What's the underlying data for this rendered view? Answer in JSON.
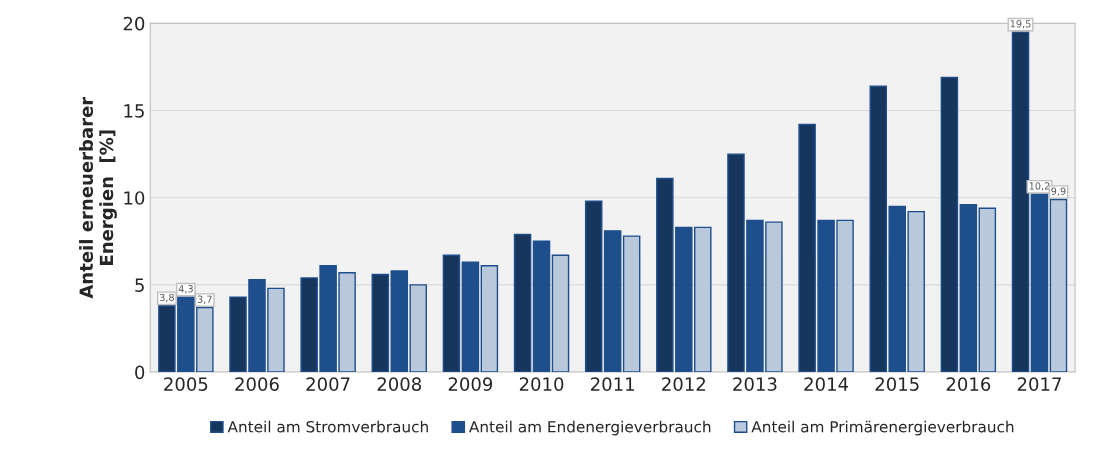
{
  "chart_data": {
    "type": "bar",
    "ylabel": "Anteil erneuerbarer\nEnergien  [%]",
    "categories": [
      "2005",
      "2006",
      "2007",
      "2008",
      "2009",
      "2010",
      "2011",
      "2012",
      "2013",
      "2014",
      "2015",
      "2016",
      "2017"
    ],
    "series": [
      {
        "name": "Anteil am Stromverbrauch",
        "color": "#17365d",
        "values": [
          3.8,
          4.3,
          5.4,
          5.6,
          6.7,
          7.9,
          9.8,
          11.1,
          12.5,
          14.2,
          16.4,
          16.9,
          19.5
        ],
        "value_labels": [
          "3,8",
          null,
          null,
          null,
          null,
          null,
          null,
          null,
          null,
          null,
          null,
          null,
          "19,5"
        ]
      },
      {
        "name": "Anteil am Endenergieverbrauch",
        "color": "#1f4e8c",
        "values": [
          4.3,
          5.3,
          6.1,
          5.8,
          6.3,
          7.5,
          8.1,
          8.3,
          8.7,
          8.7,
          9.5,
          9.6,
          10.2
        ],
        "value_labels": [
          "4,3",
          null,
          null,
          null,
          null,
          null,
          null,
          null,
          null,
          null,
          null,
          null,
          "10,2"
        ]
      },
      {
        "name": "Anteil am Primärenergieverbrauch",
        "color": "#b9c9db",
        "values": [
          3.7,
          4.8,
          5.7,
          5.0,
          6.1,
          6.7,
          7.8,
          8.3,
          8.6,
          8.7,
          9.2,
          9.4,
          9.9
        ],
        "value_labels": [
          "3,7",
          null,
          null,
          null,
          null,
          null,
          null,
          null,
          null,
          null,
          null,
          null,
          "9,9"
        ]
      }
    ],
    "ylim": [
      0,
      20
    ],
    "yticks": [
      0,
      5,
      10,
      15,
      20
    ],
    "grid": "y",
    "legend": "bottom"
  }
}
